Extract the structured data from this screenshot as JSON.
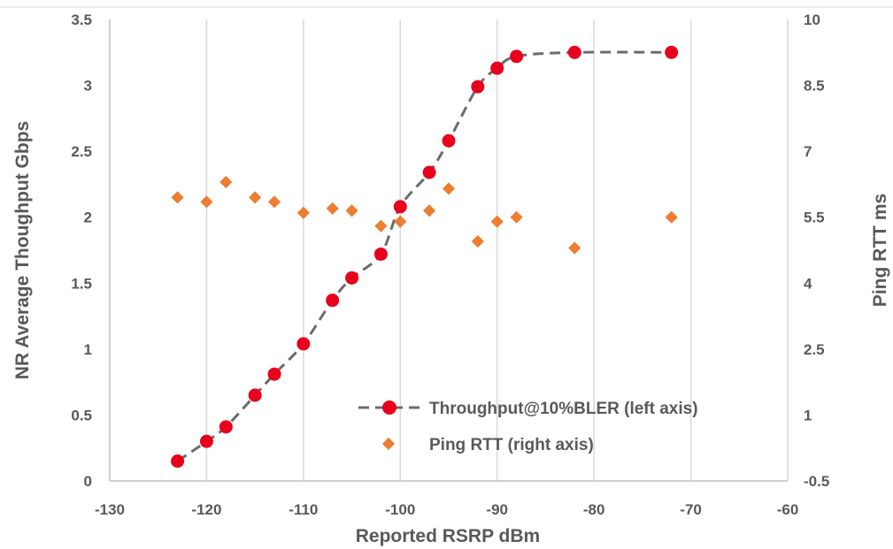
{
  "chart_data": {
    "type": "scatter",
    "title": "",
    "xlabel": "Reported RSRP dBm",
    "ylabel_left": "NR Average Thoughput Gbps",
    "ylabel_right": "Ping RTT ms",
    "xlim": [
      -130,
      -60
    ],
    "ylim_left": [
      0,
      3.5
    ],
    "ylim_right": [
      -0.5,
      10
    ],
    "x_ticks": [
      -130,
      -120,
      -110,
      -100,
      -90,
      -80,
      -70,
      -60
    ],
    "y_left_ticks": [
      0,
      0.5,
      1,
      1.5,
      2,
      2.5,
      3,
      3.5
    ],
    "y_right_ticks": [
      -0.5,
      1,
      2.5,
      4,
      5.5,
      7,
      8.5,
      10
    ],
    "x_tick_labels": [
      "-130",
      "-120",
      "-110",
      "-100",
      "-90",
      "-80",
      "-70",
      "-60"
    ],
    "y_left_tick_labels": [
      "0",
      "0.5",
      "1",
      "1.5",
      "2",
      "2.5",
      "3",
      "3.5"
    ],
    "y_right_tick_labels": [
      "-0.5",
      "1",
      "2.5",
      "4",
      "5.5",
      "7",
      "8.5",
      "10"
    ],
    "grid": "vertical",
    "legend_position": "bottom-right",
    "series": [
      {
        "name": "Throughput@10%BLER (left axis)",
        "axis": "left",
        "marker": "circle",
        "color": "#e8001c",
        "trendline_color": "#6b6b6b",
        "points": [
          [
            -123,
            0.15
          ],
          [
            -120,
            0.3
          ],
          [
            -118,
            0.41
          ],
          [
            -115,
            0.65
          ],
          [
            -113,
            0.81
          ],
          [
            -110,
            1.04
          ],
          [
            -107,
            1.37
          ],
          [
            -105,
            1.54
          ],
          [
            -102,
            1.72
          ],
          [
            -100,
            2.08
          ],
          [
            -97,
            2.34
          ],
          [
            -95,
            2.58
          ],
          [
            -92,
            2.99
          ],
          [
            -90,
            3.13
          ],
          [
            -88,
            3.22
          ],
          [
            -82,
            3.25
          ],
          [
            -72,
            3.25
          ]
        ]
      },
      {
        "name": "Ping RTT (right axis)",
        "axis": "right",
        "marker": "diamond",
        "color": "#ed7d31",
        "points": [
          [
            -123,
            5.95
          ],
          [
            -120,
            5.85
          ],
          [
            -118,
            6.3
          ],
          [
            -115,
            5.95
          ],
          [
            -113,
            5.85
          ],
          [
            -110,
            5.6
          ],
          [
            -107,
            5.7
          ],
          [
            -105,
            5.65
          ],
          [
            -102,
            5.3
          ],
          [
            -100,
            5.4
          ],
          [
            -97,
            5.65
          ],
          [
            -95,
            6.15
          ],
          [
            -92,
            4.95
          ],
          [
            -90,
            5.4
          ],
          [
            -88,
            5.5
          ],
          [
            -82,
            4.8
          ],
          [
            -72,
            5.5
          ]
        ]
      }
    ]
  }
}
